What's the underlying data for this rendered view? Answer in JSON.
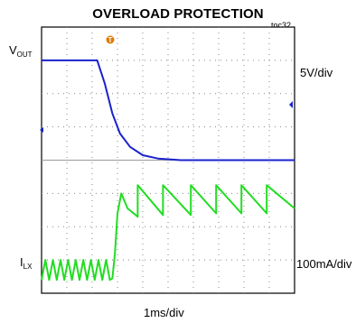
{
  "figure": {
    "title": "OVERLOAD PROTECTION",
    "toc": "toc32",
    "timebase": "1ms/div",
    "trigger_marker": "T"
  },
  "channels": [
    {
      "label_main": "V",
      "label_sub": "OUT",
      "scale": "5V/div",
      "color": "#1a22cc"
    },
    {
      "label_main": "I",
      "label_sub": "LX",
      "scale": "100mA/div",
      "color": "#22dd22"
    }
  ],
  "chart_data": {
    "type": "line",
    "title": "OVERLOAD PROTECTION",
    "x_unit": "div",
    "xlim": [
      0,
      10
    ],
    "ylim": [
      0,
      8
    ],
    "grid": true,
    "xlabel": "1ms/div",
    "series": [
      {
        "name": "VOUT",
        "color": "#1a22cc",
        "x": [
          0,
          2.2,
          2.5,
          2.8,
          3.1,
          3.5,
          4.0,
          4.6,
          5.5,
          7.0,
          8.5,
          10
        ],
        "y": [
          7.0,
          7.0,
          6.3,
          5.4,
          4.8,
          4.4,
          4.15,
          4.05,
          4.0,
          4.0,
          4.0,
          4.0
        ]
      },
      {
        "name": "ILX",
        "color": "#22dd22",
        "x": [
          0,
          0.15,
          0.3,
          0.45,
          0.6,
          0.75,
          0.9,
          1.05,
          1.2,
          1.35,
          1.5,
          1.65,
          1.8,
          1.95,
          2.1,
          2.25,
          2.4,
          2.55,
          2.7,
          2.8,
          2.9,
          3.0,
          3.15,
          3.4,
          3.8,
          3.8,
          4.8,
          4.8,
          5.9,
          5.9,
          6.9,
          6.9,
          7.9,
          7.9,
          8.9,
          8.9,
          10
        ],
        "y": [
          0.4,
          1.0,
          0.4,
          1.0,
          0.4,
          1.0,
          0.4,
          1.0,
          0.4,
          1.0,
          0.4,
          1.0,
          0.4,
          1.0,
          0.4,
          1.0,
          0.4,
          1.0,
          0.4,
          0.45,
          1.2,
          2.4,
          3.0,
          2.55,
          2.3,
          3.25,
          2.35,
          3.25,
          2.35,
          3.25,
          2.4,
          3.25,
          2.4,
          3.25,
          2.4,
          3.25,
          2.55
        ]
      }
    ]
  }
}
